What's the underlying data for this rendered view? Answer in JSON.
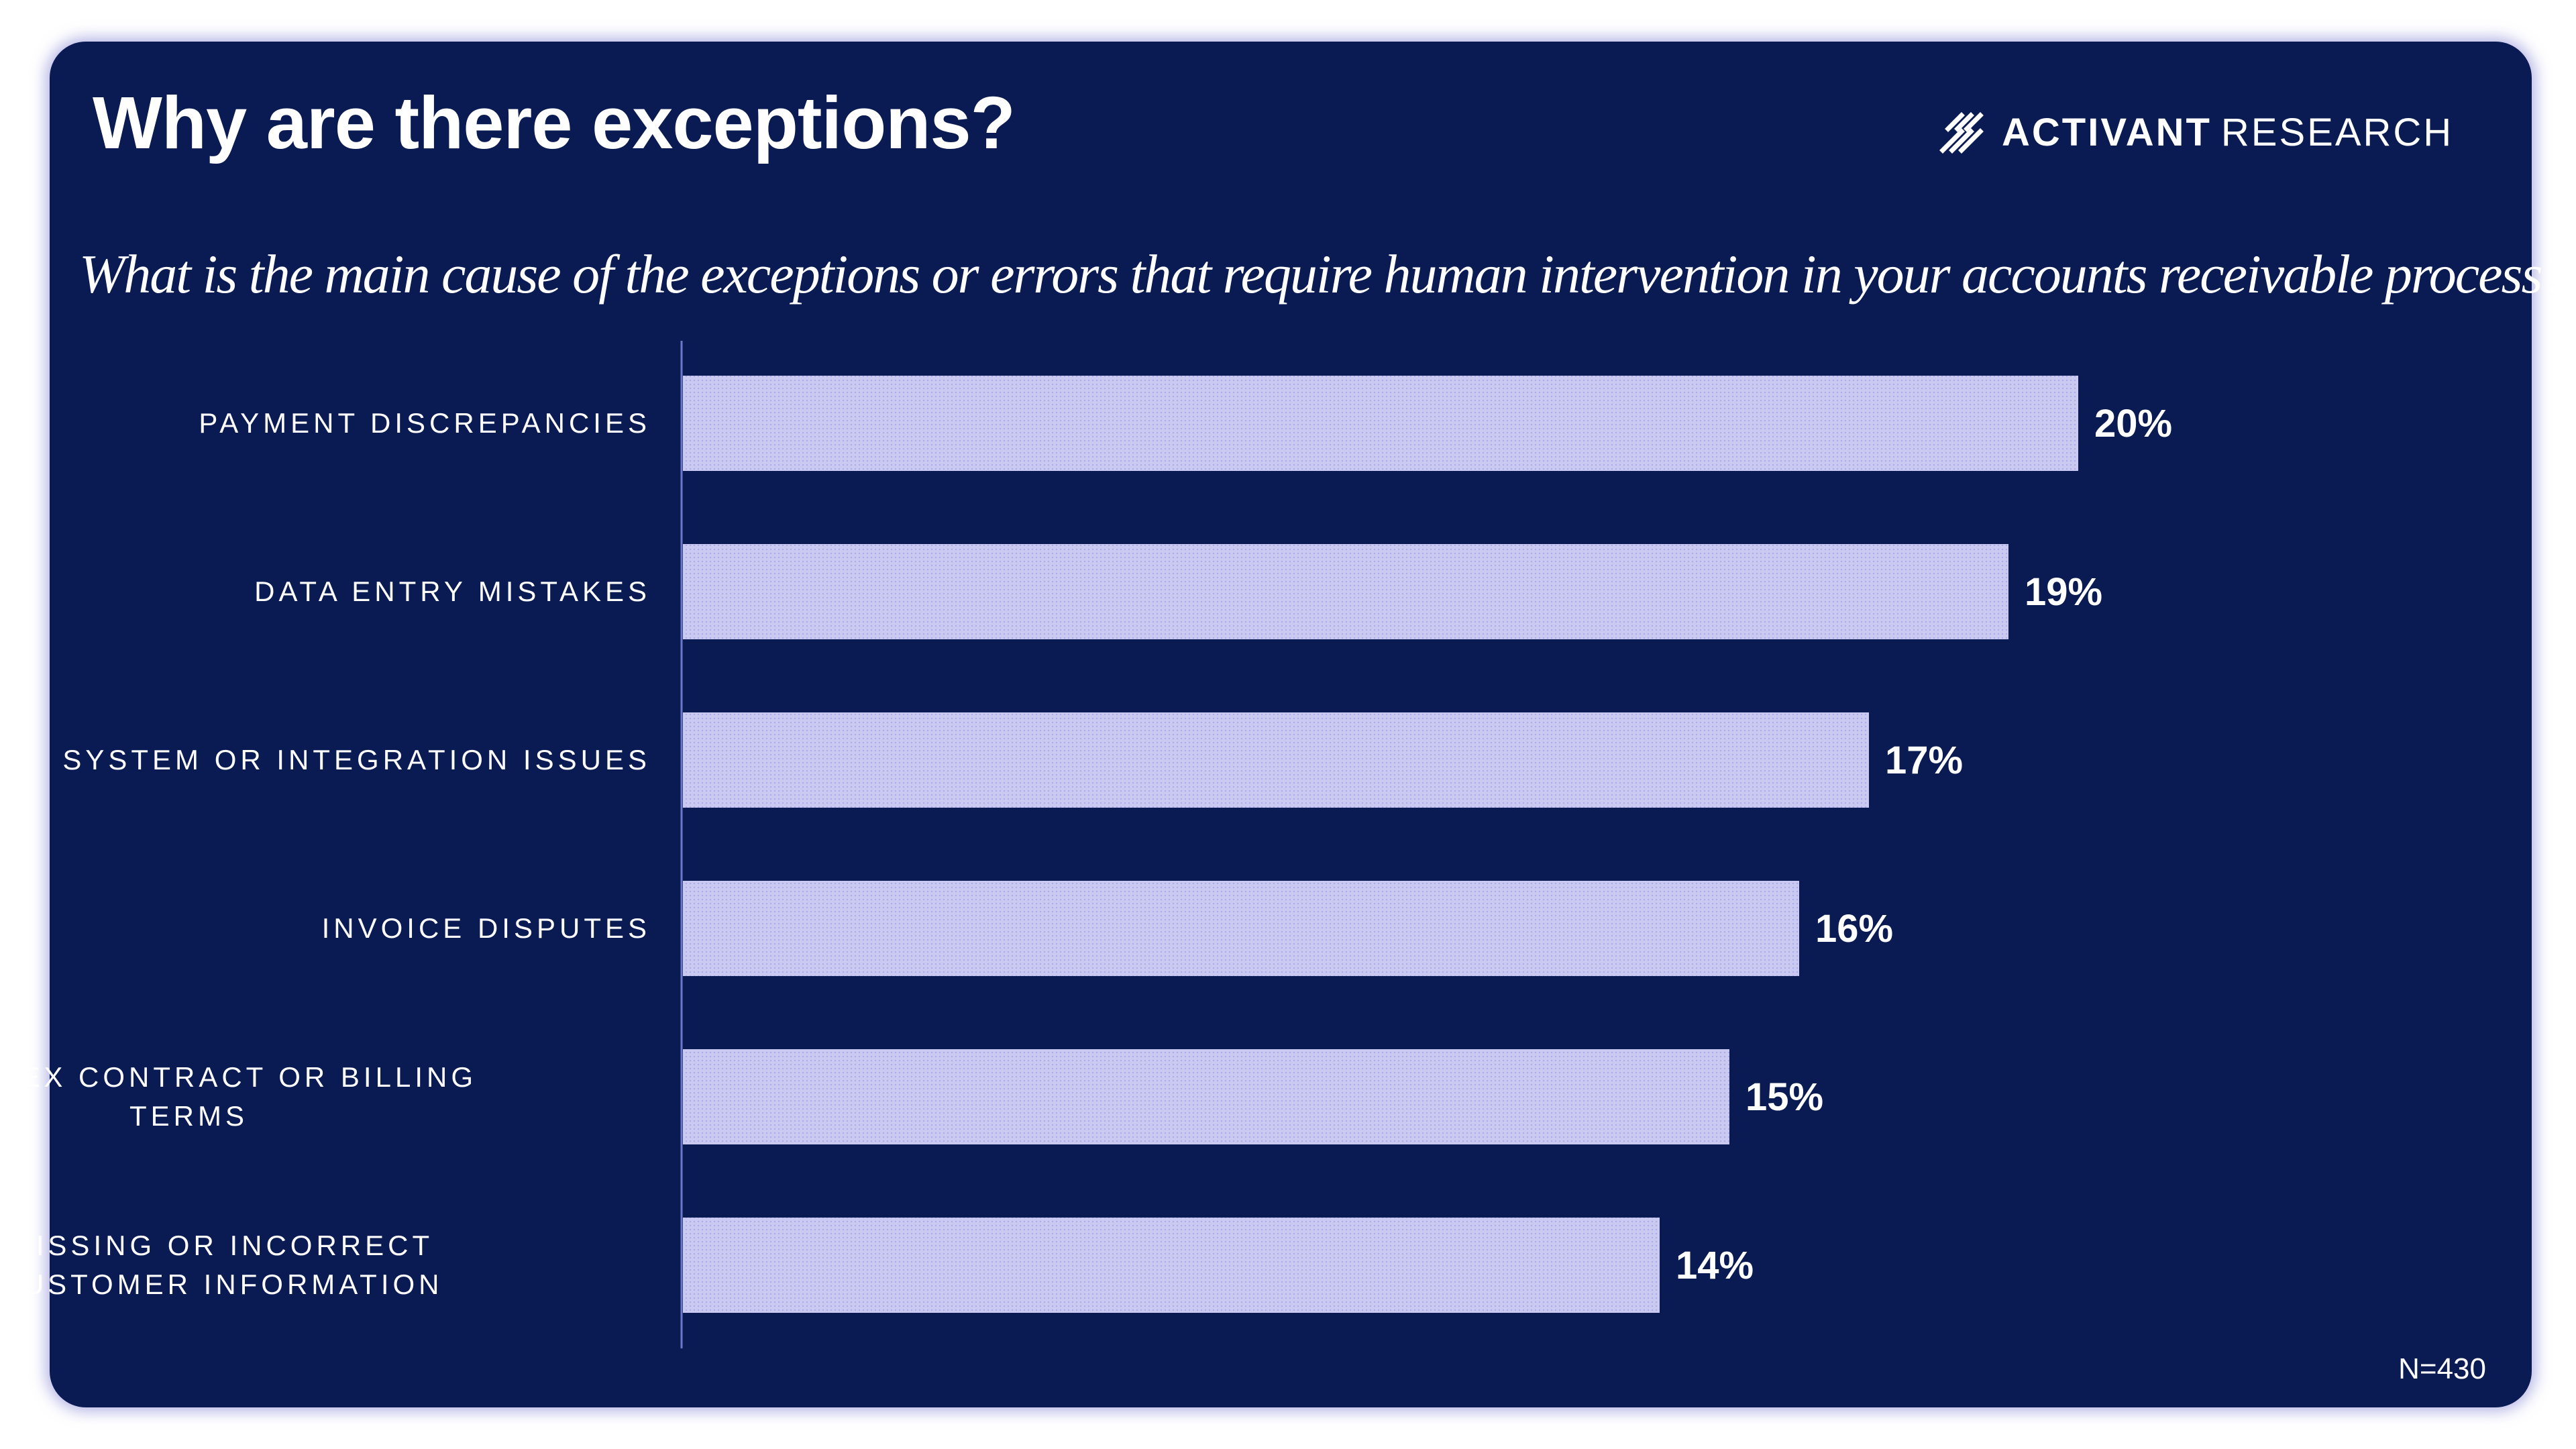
{
  "title": "Why are there exceptions?",
  "brand": {
    "name_bold": "ACTIVANT",
    "name_light": "RESEARCH"
  },
  "subtitle": "What is the main cause of the exceptions or errors that require human intervention in your accounts receivable process?",
  "note": "N=430",
  "colors": {
    "background": "#0a1a52",
    "bar": "#c9c9f2",
    "text": "#ffffff"
  },
  "chart_data": {
    "type": "bar",
    "orientation": "horizontal",
    "categories": [
      "PAYMENT DISCREPANCIES",
      "DATA ENTRY MISTAKES",
      "SYSTEM OR INTEGRATION ISSUES",
      "INVOICE DISPUTES",
      "COMPLEX CONTRACT OR BILLING TERMS",
      "MISSING OR INCORRECT CUSTOMER INFORMATION"
    ],
    "category_lines": [
      [
        "PAYMENT DISCREPANCIES"
      ],
      [
        "DATA ENTRY MISTAKES"
      ],
      [
        "SYSTEM OR INTEGRATION ISSUES"
      ],
      [
        "INVOICE DISPUTES"
      ],
      [
        "COMPLEX CONTRACT OR BILLING",
        "TERMS"
      ],
      [
        "MISSING OR INCORRECT",
        "CUSTOMER INFORMATION"
      ]
    ],
    "values": [
      20,
      19,
      17,
      16,
      15,
      14
    ],
    "value_labels": [
      "20%",
      "19%",
      "17%",
      "16%",
      "15%",
      "14%"
    ],
    "xlim": [
      0,
      20
    ],
    "legend": "none",
    "grid": false
  }
}
